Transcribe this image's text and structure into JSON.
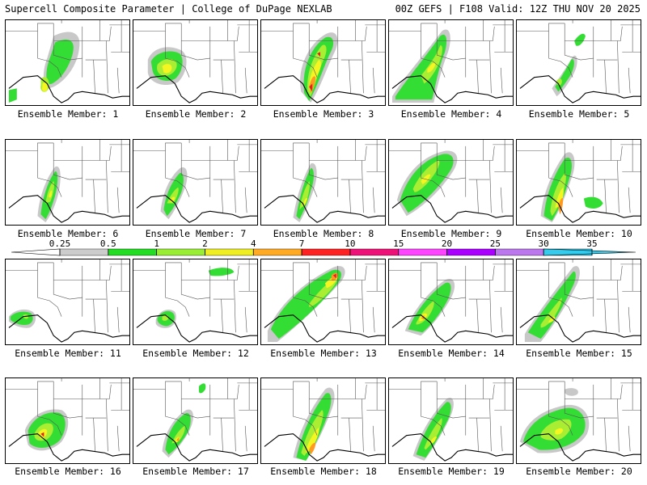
{
  "header": {
    "left_title": "Supercell Composite Parameter | College of DuPage NEXLAB",
    "right_title": "00Z GEFS | F108 Valid: 12Z THU NOV 20 2025"
  },
  "members": [
    {
      "label": "Ensemble Member: 1"
    },
    {
      "label": "Ensemble Member: 2"
    },
    {
      "label": "Ensemble Member: 3"
    },
    {
      "label": "Ensemble Member: 4"
    },
    {
      "label": "Ensemble Member: 5"
    },
    {
      "label": "Ensemble Member: 6"
    },
    {
      "label": "Ensemble Member: 7"
    },
    {
      "label": "Ensemble Member: 8"
    },
    {
      "label": "Ensemble Member: 9"
    },
    {
      "label": "Ensemble Member: 10"
    },
    {
      "label": "Ensemble Member: 11"
    },
    {
      "label": "Ensemble Member: 12"
    },
    {
      "label": "Ensemble Member: 13"
    },
    {
      "label": "Ensemble Member: 14"
    },
    {
      "label": "Ensemble Member: 15"
    },
    {
      "label": "Ensemble Member: 16"
    },
    {
      "label": "Ensemble Member: 17"
    },
    {
      "label": "Ensemble Member: 18"
    },
    {
      "label": "Ensemble Member: 19"
    },
    {
      "label": "Ensemble Member: 20"
    }
  ],
  "colorbar": {
    "ticks": [
      "0.25",
      "0.5",
      "1",
      "2",
      "4",
      "7",
      "10",
      "15",
      "20",
      "25",
      "30",
      "35"
    ],
    "colors": [
      "#cccccc",
      "#22dd22",
      "#99ee33",
      "#eeee22",
      "#ffaa22",
      "#ff2222",
      "#ee1177",
      "#ff44ff",
      "#aa00ff",
      "#bb77ee",
      "#33ccee"
    ]
  },
  "field_colors": {
    "gray": "#c8c8c8",
    "green": "#33dd33",
    "lime": "#aaee33",
    "yellow": "#f5f522",
    "orange": "#ff9922",
    "red": "#dd2222"
  }
}
